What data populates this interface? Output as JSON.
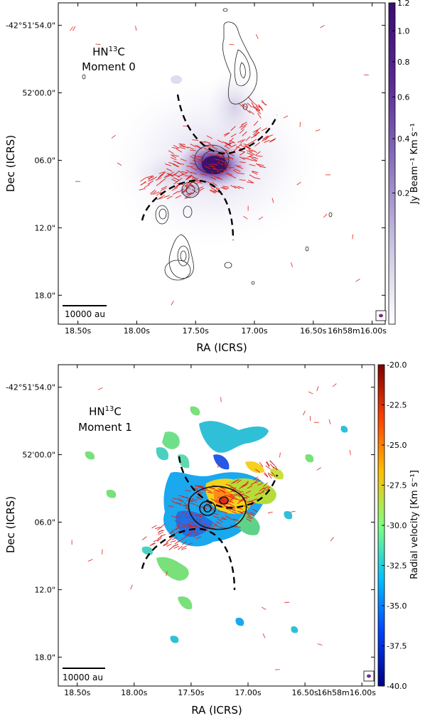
{
  "panels": [
    {
      "title_line1": "HN",
      "title_sup": "13",
      "title_line1_end": "C",
      "title_line2": "Moment 0",
      "ylabel": "Dec (ICRS)",
      "xlabel": "RA (ICRS)",
      "scalebar": "10000 au",
      "colorbar_label": "Jy Beam⁻¹ Km s⁻¹",
      "colorbar_ticks": [
        "1.2",
        "1.0",
        "0.8",
        "0.6",
        "0.4",
        "0.2"
      ],
      "colorbar_tick_values": [
        1.2,
        1.0,
        0.8,
        0.6,
        0.4,
        0.2
      ],
      "colorbar_range": [
        0.0,
        1.2
      ],
      "colorbar_scale": "sqrt",
      "colormap": [
        "#ffffff",
        "#c9c3e2",
        "#8a73bd",
        "#5a2a93",
        "#3b0b72"
      ]
    },
    {
      "title_line1": "HN",
      "title_sup": "13",
      "title_line1_end": "C",
      "title_line2": "Moment 1",
      "ylabel": "Dec (ICRS)",
      "xlabel": "RA (ICRS)",
      "scalebar": "10000 au",
      "colorbar_label": "Radial velocity [Km s⁻¹]",
      "colorbar_ticks": [
        "-20.0",
        "-22.5",
        "-25.0",
        "-27.5",
        "-30.0",
        "-32.5",
        "-35.0",
        "-37.5",
        "-40.0"
      ],
      "colorbar_tick_values": [
        -20.0,
        -22.5,
        -25.0,
        -27.5,
        -30.0,
        -32.5,
        -35.0,
        -37.5,
        -40.0
      ],
      "colorbar_range": [
        -40.0,
        -20.0
      ],
      "colorbar_scale": "linear",
      "colormap": [
        "#00007f",
        "#0040ff",
        "#00c0ff",
        "#7fff7f",
        "#ffc000",
        "#ff4000",
        "#7f0000"
      ]
    }
  ],
  "axes": {
    "x_ticks": [
      "18.50s",
      "18.00s",
      "17.50s",
      "17.00s",
      "16.50s",
      "16h58m16.00s"
    ],
    "y_ticks": [
      "-42°51'54.0\"",
      "52'00.0\"",
      "06.0\"",
      "12.0\"",
      "18.0\""
    ]
  },
  "chart_data": [
    {
      "type": "heatmap",
      "title": "HN13C Moment 0",
      "xlabel": "RA (ICRS)",
      "ylabel": "Dec (ICRS)",
      "x_tick_labels": [
        "18.50s",
        "18.00s",
        "17.50s",
        "17.00s",
        "16.50s",
        "16h58m16.00s"
      ],
      "y_tick_labels": [
        "-42°51'54.0\"",
        "52'00.0\"",
        "06.0\"",
        "12.0\"",
        "18.0\""
      ],
      "colorbar_label": "Jy Beam^-1 Km s^-1",
      "colorbar_range": [
        0.0,
        1.2
      ],
      "peak_value_approx": 1.1,
      "overlays": [
        "black contours",
        "red polarization vectors",
        "dashed arcs",
        "beam ellipse"
      ]
    },
    {
      "type": "heatmap",
      "title": "HN13C Moment 1",
      "xlabel": "RA (ICRS)",
      "ylabel": "Dec (ICRS)",
      "x_tick_labels": [
        "18.50s",
        "18.00s",
        "17.50s",
        "17.00s",
        "16.50s",
        "16h58m16.00s"
      ],
      "y_tick_labels": [
        "-42°51'54.0\"",
        "52'00.0\"",
        "06.0\"",
        "12.0\"",
        "18.0\""
      ],
      "colorbar_label": "Radial velocity [Km s^-1]",
      "colorbar_range": [
        -40.0,
        -20.0
      ],
      "overlays": [
        "black contours",
        "red polarization vectors",
        "dashed arcs",
        "beam ellipse"
      ]
    }
  ]
}
